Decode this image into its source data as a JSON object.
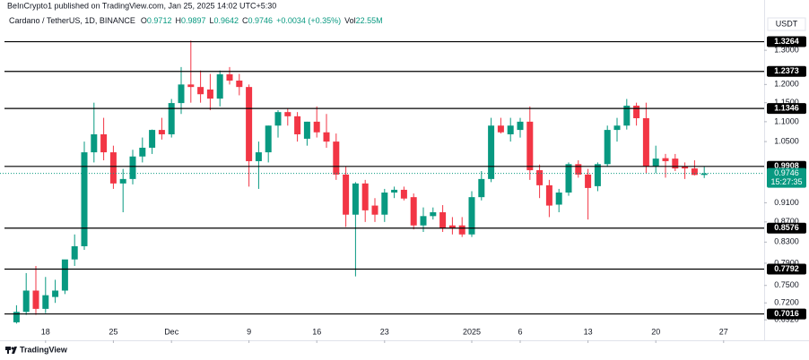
{
  "header": {
    "published": "BeInCrypto1 published on TradingView.com, Jan 25, 2025 14:02 UTC+5:30",
    "symbol": "Cardano / TetherUS, 1D, BINANCE",
    "ohlc": [
      {
        "key": "O",
        "value": "0.9712"
      },
      {
        "key": "H",
        "value": "0.9897"
      },
      {
        "key": "L",
        "value": "0.9642"
      },
      {
        "key": "C",
        "value": "0.9746"
      }
    ],
    "change": "+0.0034 (+0.35%)",
    "volume_key": "Vol",
    "volume": "22.55M",
    "currency": "USDT"
  },
  "footer": {
    "brand": "TradingView"
  },
  "chart_data": {
    "type": "candlestick",
    "log_scale": true,
    "up_color": "#089981",
    "down_color": "#f23645",
    "level_color": "#000000",
    "categories": [
      null,
      null,
      null,
      "18",
      null,
      null,
      null,
      null,
      null,
      null,
      "25",
      null,
      null,
      null,
      null,
      null,
      "Dec",
      null,
      null,
      null,
      null,
      null,
      null,
      null,
      "9",
      null,
      null,
      null,
      null,
      null,
      null,
      "16",
      null,
      null,
      null,
      null,
      null,
      null,
      "23",
      null,
      null,
      null,
      null,
      null,
      null,
      null,
      null,
      "2025",
      null,
      null,
      null,
      null,
      "6",
      null,
      null,
      null,
      null,
      null,
      null,
      "13",
      null,
      null,
      null,
      null,
      null,
      null,
      "20",
      null,
      null,
      null,
      null,
      null,
      null,
      "27"
    ],
    "open": [
      0.688,
      0.705,
      0.741,
      0.71,
      0.73,
      0.741,
      0.797,
      0.822,
      1.024,
      1.068,
      1.024,
      0.952,
      0.962,
      1.014,
      1.035,
      1.079,
      1.068,
      1.149,
      1.2,
      1.193,
      1.186,
      1.161,
      1.229,
      1.211,
      1.193,
      1.003,
      1.024,
      1.09,
      1.125,
      1.114,
      1.057,
      1.1,
      1.073,
      1.05,
      0.972,
      0.885,
      0.952,
      0.904,
      0.885,
      0.932,
      0.938,
      0.922,
      0.863,
      0.882,
      0.89,
      0.863,
      0.863,
      0.845,
      0.922,
      0.962,
      1.09,
      1.068,
      1.079,
      1.1,
      0.982,
      0.948,
      0.906,
      0.932,
      0.996,
      0.972,
      0.946,
      0.996,
      1.079,
      1.09,
      1.142,
      1.109,
      0.991,
      1.01,
      1.009,
      0.991,
      0.986,
      0.9712,
      null,
      null
    ],
    "high": [
      0.716,
      0.772,
      0.785,
      0.765,
      0.76,
      0.795,
      0.845,
      1.05,
      1.15,
      1.11,
      1.04,
      0.985,
      1.03,
      1.06,
      1.08,
      1.11,
      1.16,
      1.25,
      1.33,
      1.24,
      1.23,
      1.24,
      1.25,
      1.23,
      1.2,
      1.05,
      1.09,
      1.13,
      1.135,
      1.125,
      1.1,
      1.14,
      1.12,
      1.07,
      0.99,
      0.955,
      0.96,
      0.92,
      0.94,
      0.945,
      0.945,
      0.93,
      0.9,
      0.9,
      0.905,
      0.88,
      0.88,
      0.935,
      0.98,
      1.11,
      1.11,
      1.11,
      1.11,
      1.14,
      0.995,
      0.96,
      0.94,
      1.0,
      1.005,
      0.985,
      1.0,
      1.09,
      1.11,
      1.16,
      1.15,
      1.15,
      1.04,
      1.02,
      1.02,
      1.0,
      1.005,
      0.9897,
      null,
      null
    ],
    "low": [
      0.686,
      0.7,
      0.7,
      0.703,
      0.72,
      0.735,
      0.785,
      0.815,
      1.0,
      1.005,
      0.94,
      0.89,
      0.95,
      1.0,
      1.02,
      1.055,
      1.06,
      1.12,
      1.15,
      1.15,
      1.13,
      1.14,
      1.2,
      1.17,
      0.945,
      0.94,
      1.0,
      1.06,
      1.09,
      1.05,
      1.04,
      1.06,
      1.035,
      0.96,
      0.86,
      0.766,
      0.87,
      0.87,
      0.87,
      0.92,
      0.915,
      0.855,
      0.85,
      0.875,
      0.85,
      0.845,
      0.84,
      0.84,
      0.915,
      0.955,
      1.07,
      1.05,
      1.06,
      0.96,
      0.92,
      0.88,
      0.89,
      0.925,
      0.965,
      0.875,
      0.935,
      0.99,
      1.05,
      1.08,
      1.09,
      0.975,
      0.975,
      0.965,
      0.98,
      0.962,
      0.97,
      0.9642,
      null,
      null
    ],
    "close": [
      0.705,
      0.741,
      0.71,
      0.733,
      0.741,
      0.797,
      0.822,
      1.024,
      1.068,
      1.024,
      0.952,
      0.962,
      1.014,
      1.035,
      1.079,
      1.068,
      1.149,
      1.2,
      1.193,
      1.173,
      1.161,
      1.229,
      1.211,
      1.193,
      1.003,
      1.024,
      1.09,
      1.125,
      1.114,
      1.068,
      1.1,
      1.073,
      1.05,
      0.972,
      0.885,
      0.952,
      0.894,
      0.885,
      0.932,
      0.938,
      0.919,
      0.863,
      0.882,
      0.89,
      0.857,
      0.857,
      0.845,
      0.922,
      0.962,
      1.09,
      1.073,
      1.09,
      1.1,
      0.982,
      0.948,
      0.904,
      0.932,
      0.996,
      0.972,
      0.942,
      0.996,
      1.079,
      1.09,
      1.142,
      1.109,
      0.991,
      1.009,
      1.003,
      0.986,
      0.986,
      0.9712,
      0.9746,
      null,
      null
    ],
    "ylim": [
      0.685,
      1.417
    ],
    "yticks": [
      {
        "value": 0.692,
        "label": "0.6920"
      },
      {
        "value": 0.72,
        "label": "0.7200"
      },
      {
        "value": 0.75,
        "label": "0.7500"
      },
      {
        "value": 0.79,
        "label": "0.7900"
      },
      {
        "value": 0.83,
        "label": "0.8300"
      },
      {
        "value": 0.87,
        "label": "0.8700"
      },
      {
        "value": 0.91,
        "label": "0.9100"
      },
      {
        "value": 1.05,
        "label": "1.0500"
      },
      {
        "value": 1.1,
        "label": "1.1000"
      },
      {
        "value": 1.15,
        "label": "1.1500"
      },
      {
        "value": 1.2,
        "label": "1.2000"
      },
      {
        "value": 1.3,
        "label": "1.3000"
      }
    ],
    "levels": [
      1.3264,
      1.2373,
      1.1346,
      0.9908,
      0.8576,
      0.7792,
      0.7016
    ],
    "last_price": 0.9746,
    "countdown": "15:27:35"
  }
}
